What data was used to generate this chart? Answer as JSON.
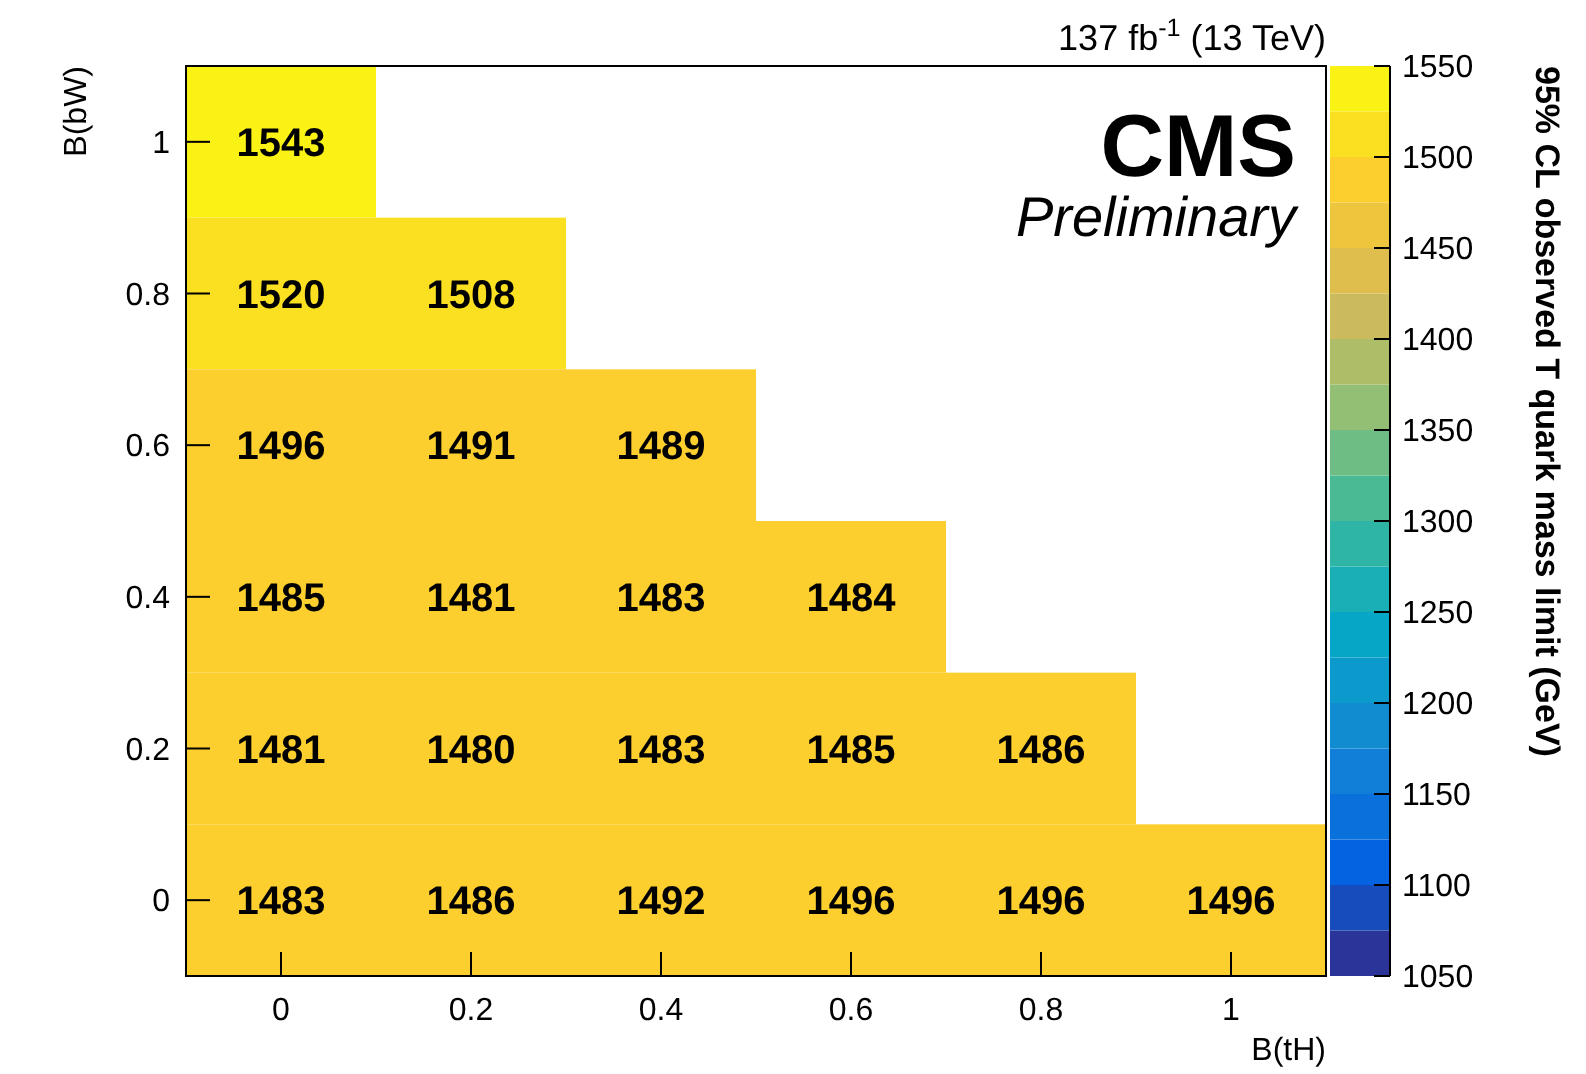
{
  "chart_data": {
    "type": "heatmap",
    "title": "137 fb$^{-1}$ (13 TeV)",
    "xlabel": "B(tH)",
    "ylabel": "B(bW)",
    "clabel": "95% CL observed T quark mass limit (GeV)",
    "annotations": [
      "CMS",
      "Preliminary"
    ],
    "categories": [
      "0",
      "0.2",
      "0.4",
      "0.6",
      "0.8",
      "1"
    ],
    "y_categories": [
      "1",
      "0.8",
      "0.6",
      "0.4",
      "0.2",
      "0"
    ],
    "cells": [
      [
        1543,
        null,
        null,
        null,
        null,
        null
      ],
      [
        1520,
        1508,
        null,
        null,
        null,
        null
      ],
      [
        1496,
        1491,
        1489,
        null,
        null,
        null
      ],
      [
        1485,
        1481,
        1483,
        1484,
        null,
        null
      ],
      [
        1481,
        1480,
        1483,
        1485,
        1486,
        null
      ],
      [
        1483,
        1486,
        1492,
        1496,
        1496,
        1496
      ]
    ],
    "data_labels": true,
    "clim": [
      1050,
      1550
    ],
    "cticks": [
      1050,
      1100,
      1150,
      1200,
      1250,
      1300,
      1350,
      1400,
      1450,
      1500,
      1550
    ]
  }
}
